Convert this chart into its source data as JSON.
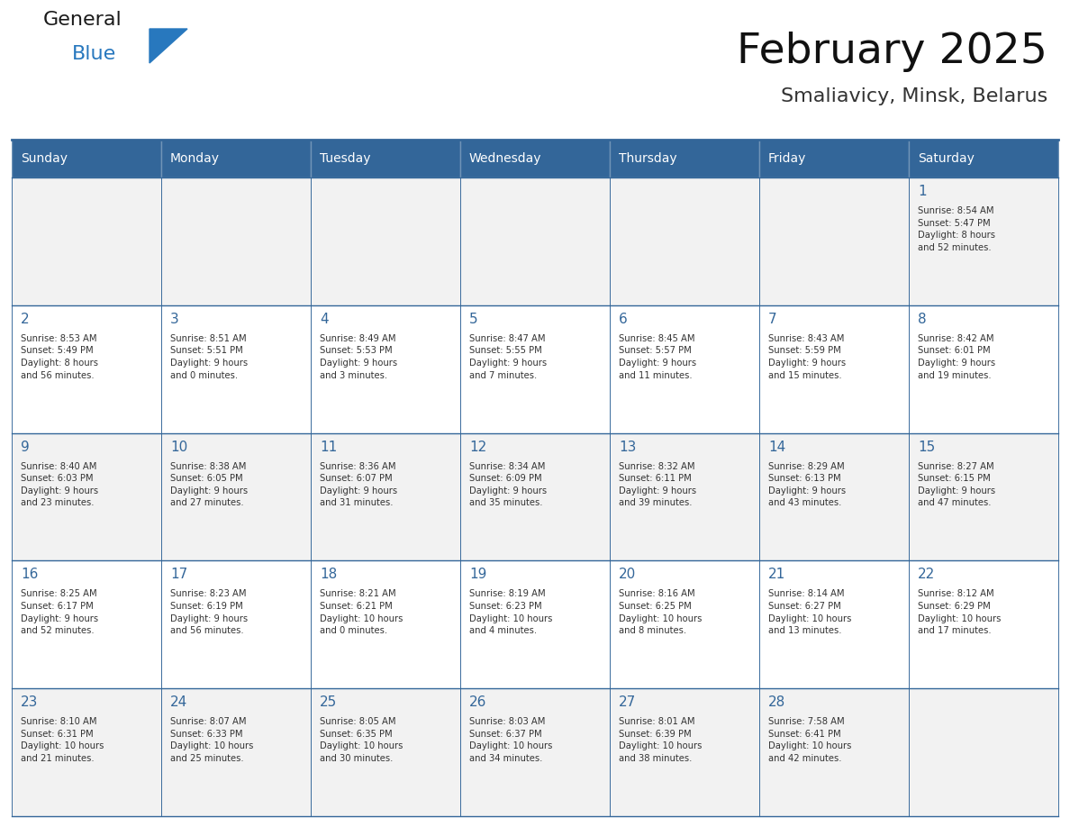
{
  "title": "February 2025",
  "subtitle": "Smaliavicy, Minsk, Belarus",
  "days_of_week": [
    "Sunday",
    "Monday",
    "Tuesday",
    "Wednesday",
    "Thursday",
    "Friday",
    "Saturday"
  ],
  "header_bg": "#336699",
  "header_text": "#FFFFFF",
  "cell_bg_odd": "#F2F2F2",
  "cell_bg_even": "#FFFFFF",
  "border_color": "#336699",
  "text_color": "#333333",
  "day_num_color": "#336699",
  "logo_general_color": "#1A1A1A",
  "logo_blue_color": "#2878BE",
  "logo_triangle_color": "#2878BE",
  "calendar_data": [
    [
      {
        "day": null,
        "info": null
      },
      {
        "day": null,
        "info": null
      },
      {
        "day": null,
        "info": null
      },
      {
        "day": null,
        "info": null
      },
      {
        "day": null,
        "info": null
      },
      {
        "day": null,
        "info": null
      },
      {
        "day": 1,
        "info": "Sunrise: 8:54 AM\nSunset: 5:47 PM\nDaylight: 8 hours\nand 52 minutes."
      }
    ],
    [
      {
        "day": 2,
        "info": "Sunrise: 8:53 AM\nSunset: 5:49 PM\nDaylight: 8 hours\nand 56 minutes."
      },
      {
        "day": 3,
        "info": "Sunrise: 8:51 AM\nSunset: 5:51 PM\nDaylight: 9 hours\nand 0 minutes."
      },
      {
        "day": 4,
        "info": "Sunrise: 8:49 AM\nSunset: 5:53 PM\nDaylight: 9 hours\nand 3 minutes."
      },
      {
        "day": 5,
        "info": "Sunrise: 8:47 AM\nSunset: 5:55 PM\nDaylight: 9 hours\nand 7 minutes."
      },
      {
        "day": 6,
        "info": "Sunrise: 8:45 AM\nSunset: 5:57 PM\nDaylight: 9 hours\nand 11 minutes."
      },
      {
        "day": 7,
        "info": "Sunrise: 8:43 AM\nSunset: 5:59 PM\nDaylight: 9 hours\nand 15 minutes."
      },
      {
        "day": 8,
        "info": "Sunrise: 8:42 AM\nSunset: 6:01 PM\nDaylight: 9 hours\nand 19 minutes."
      }
    ],
    [
      {
        "day": 9,
        "info": "Sunrise: 8:40 AM\nSunset: 6:03 PM\nDaylight: 9 hours\nand 23 minutes."
      },
      {
        "day": 10,
        "info": "Sunrise: 8:38 AM\nSunset: 6:05 PM\nDaylight: 9 hours\nand 27 minutes."
      },
      {
        "day": 11,
        "info": "Sunrise: 8:36 AM\nSunset: 6:07 PM\nDaylight: 9 hours\nand 31 minutes."
      },
      {
        "day": 12,
        "info": "Sunrise: 8:34 AM\nSunset: 6:09 PM\nDaylight: 9 hours\nand 35 minutes."
      },
      {
        "day": 13,
        "info": "Sunrise: 8:32 AM\nSunset: 6:11 PM\nDaylight: 9 hours\nand 39 minutes."
      },
      {
        "day": 14,
        "info": "Sunrise: 8:29 AM\nSunset: 6:13 PM\nDaylight: 9 hours\nand 43 minutes."
      },
      {
        "day": 15,
        "info": "Sunrise: 8:27 AM\nSunset: 6:15 PM\nDaylight: 9 hours\nand 47 minutes."
      }
    ],
    [
      {
        "day": 16,
        "info": "Sunrise: 8:25 AM\nSunset: 6:17 PM\nDaylight: 9 hours\nand 52 minutes."
      },
      {
        "day": 17,
        "info": "Sunrise: 8:23 AM\nSunset: 6:19 PM\nDaylight: 9 hours\nand 56 minutes."
      },
      {
        "day": 18,
        "info": "Sunrise: 8:21 AM\nSunset: 6:21 PM\nDaylight: 10 hours\nand 0 minutes."
      },
      {
        "day": 19,
        "info": "Sunrise: 8:19 AM\nSunset: 6:23 PM\nDaylight: 10 hours\nand 4 minutes."
      },
      {
        "day": 20,
        "info": "Sunrise: 8:16 AM\nSunset: 6:25 PM\nDaylight: 10 hours\nand 8 minutes."
      },
      {
        "day": 21,
        "info": "Sunrise: 8:14 AM\nSunset: 6:27 PM\nDaylight: 10 hours\nand 13 minutes."
      },
      {
        "day": 22,
        "info": "Sunrise: 8:12 AM\nSunset: 6:29 PM\nDaylight: 10 hours\nand 17 minutes."
      }
    ],
    [
      {
        "day": 23,
        "info": "Sunrise: 8:10 AM\nSunset: 6:31 PM\nDaylight: 10 hours\nand 21 minutes."
      },
      {
        "day": 24,
        "info": "Sunrise: 8:07 AM\nSunset: 6:33 PM\nDaylight: 10 hours\nand 25 minutes."
      },
      {
        "day": 25,
        "info": "Sunrise: 8:05 AM\nSunset: 6:35 PM\nDaylight: 10 hours\nand 30 minutes."
      },
      {
        "day": 26,
        "info": "Sunrise: 8:03 AM\nSunset: 6:37 PM\nDaylight: 10 hours\nand 34 minutes."
      },
      {
        "day": 27,
        "info": "Sunrise: 8:01 AM\nSunset: 6:39 PM\nDaylight: 10 hours\nand 38 minutes."
      },
      {
        "day": 28,
        "info": "Sunrise: 7:58 AM\nSunset: 6:41 PM\nDaylight: 10 hours\nand 42 minutes."
      },
      {
        "day": null,
        "info": null
      }
    ]
  ]
}
